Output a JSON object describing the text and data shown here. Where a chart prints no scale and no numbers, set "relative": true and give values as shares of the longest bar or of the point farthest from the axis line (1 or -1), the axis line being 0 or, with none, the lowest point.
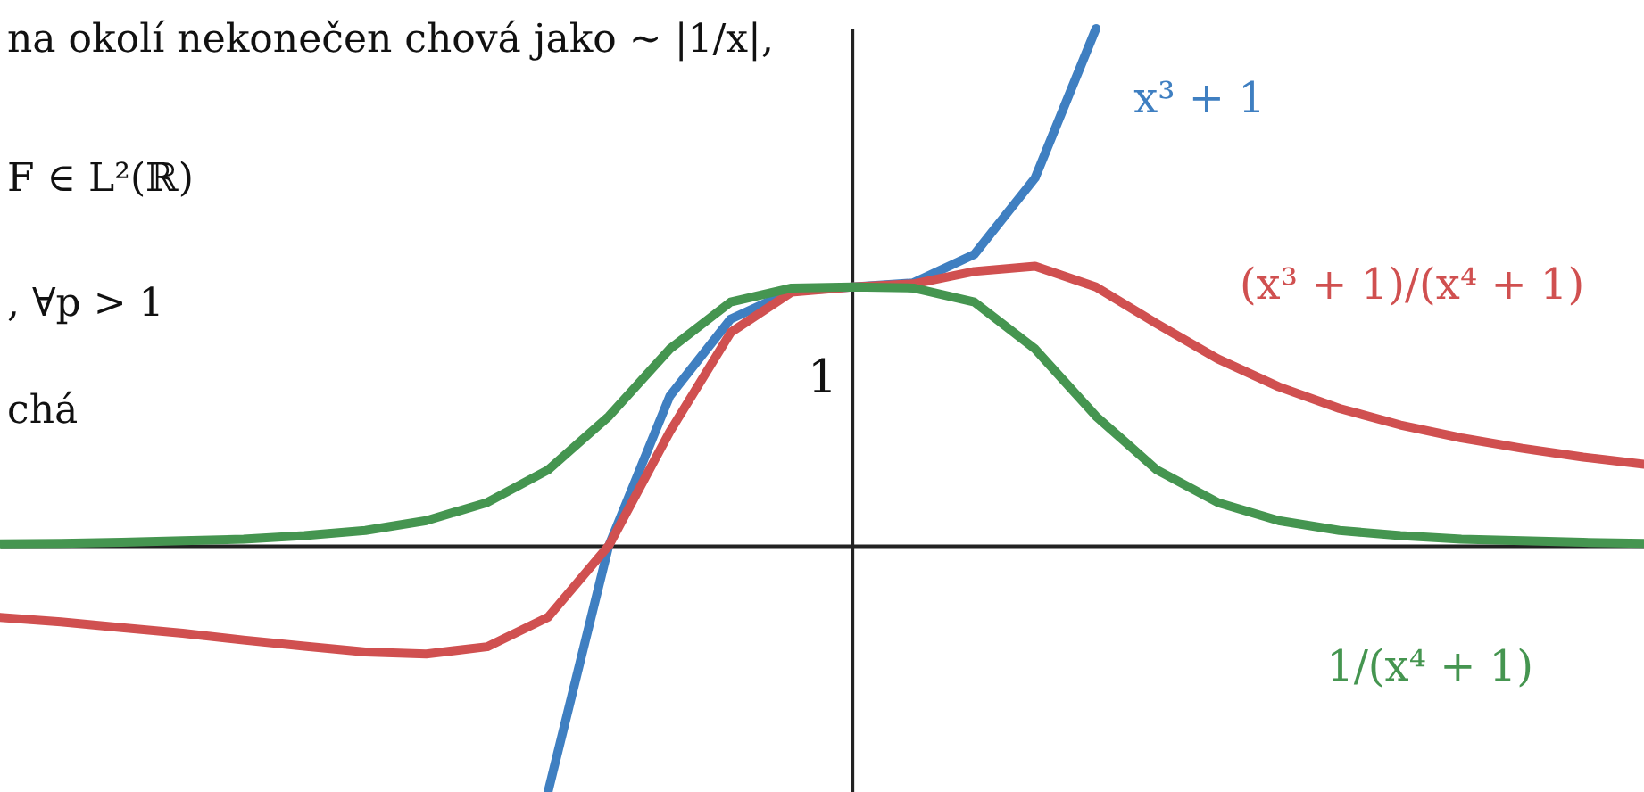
{
  "chart_data": {
    "type": "line",
    "relative": true,
    "annotations": [
      "na okolí nekonečen chová jako ∼ |1/x|,",
      "F ∈ L²(ℝ)",
      ",   ∀p > 1",
      "chá",
      "1"
    ],
    "categories": [
      null,
      null,
      null,
      null,
      null,
      null,
      null,
      null,
      null,
      null,
      null,
      null,
      null,
      null,
      null,
      null,
      null,
      null,
      null,
      null,
      null,
      null,
      null,
      null,
      null,
      null,
      null,
      null
    ],
    "grid": false,
    "marker": "none",
    "line_style": "solid",
    "series": [
      {
        "name": "x³ + 1",
        "color": "#3f7fc1",
        "values": [
          null,
          null,
          null,
          null,
          null,
          null,
          null,
          null,
          null,
          -0.477,
          0,
          0.289,
          0.438,
          0.492,
          0.5,
          0.508,
          0.563,
          0.711,
          1,
          null,
          null,
          null,
          null,
          null,
          null,
          null,
          null,
          null
        ]
      },
      {
        "name": "(x³ + 1)/(x⁴ + 1)",
        "color": "#d05050",
        "values": [
          -0.139,
          -0.148,
          -0.159,
          -0.17,
          -0.183,
          -0.195,
          -0.206,
          -0.21,
          -0.196,
          -0.139,
          0,
          0.22,
          0.412,
          0.49,
          0.5,
          0.506,
          0.53,
          0.54,
          0.5,
          0.429,
          0.361,
          0.307,
          0.265,
          0.233,
          0.208,
          0.188,
          0.171,
          0.157
        ]
      },
      {
        "name": "1/(x⁴ + 1)",
        "color": "#459550",
        "values": [
          0.003,
          0.004,
          0.006,
          0.009,
          0.012,
          0.019,
          0.029,
          0.048,
          0.083,
          0.146,
          0.25,
          0.38,
          0.471,
          0.498,
          0.5,
          0.498,
          0.471,
          0.38,
          0.25,
          0.146,
          0.083,
          0.048,
          0.029,
          0.019,
          0.012,
          0.009,
          0.006,
          0.004
        ]
      }
    ]
  }
}
